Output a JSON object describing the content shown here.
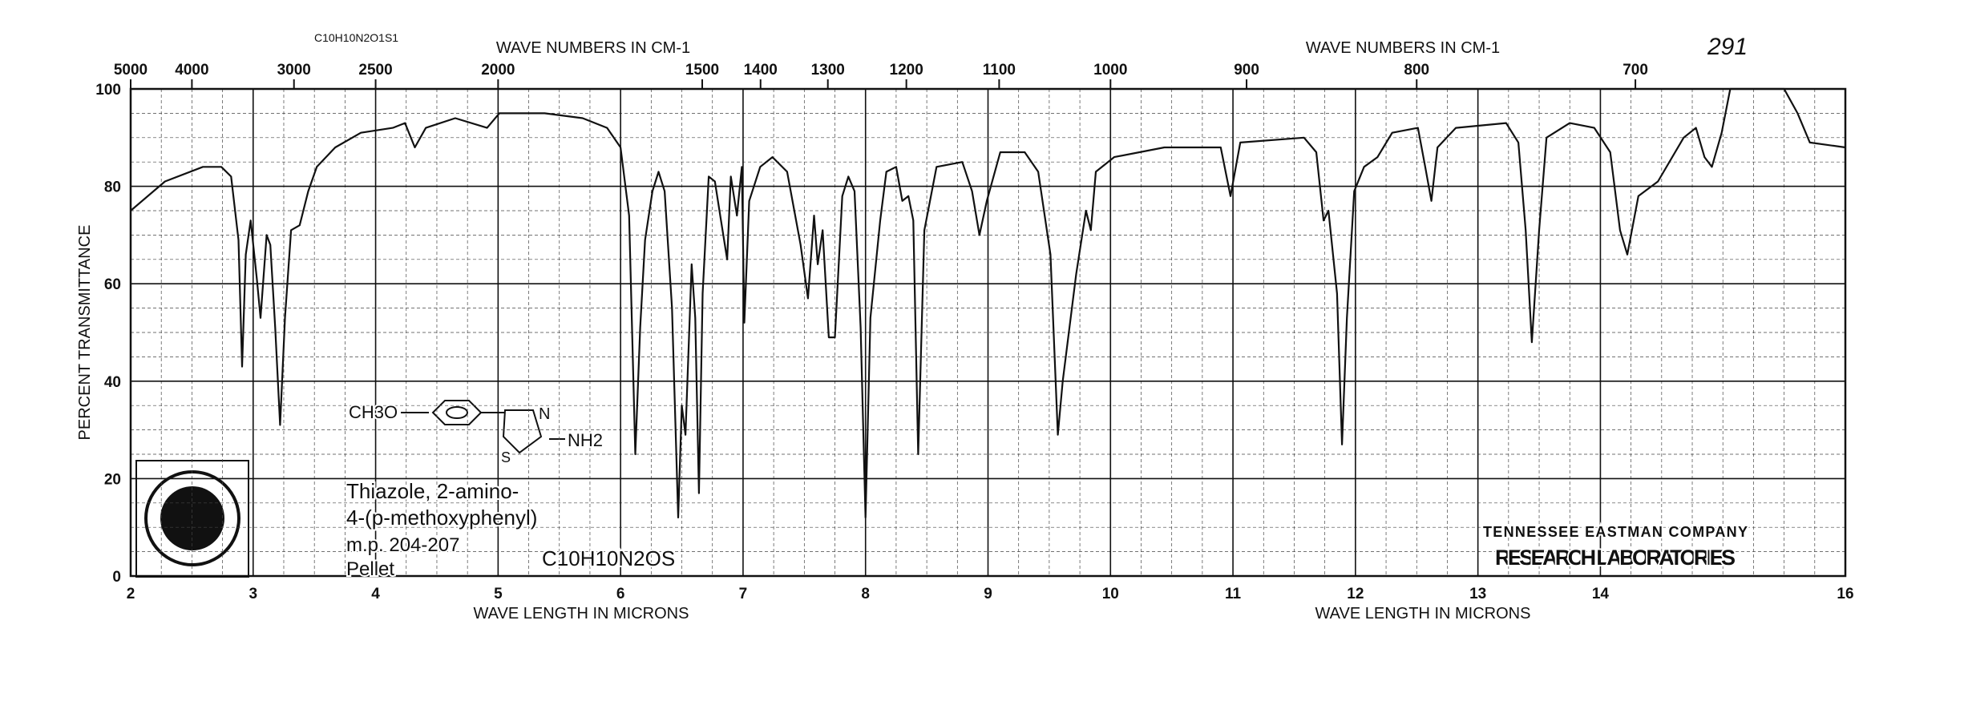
{
  "chart_data": {
    "type": "line",
    "title": "C10H10N2O1S1",
    "page_number": "291",
    "top_axis_label": "WAVE NUMBERS IN CM-1",
    "top_axis_label_right": "WAVE NUMBERS IN CM-1",
    "x_label": "WAVE LENGTH IN MICRONS",
    "x_label_right": "WAVE LENGTH IN MICRONS",
    "y_label": "PERCENT TRANSMITTANCE",
    "xlim": [
      2,
      16
    ],
    "xticks": [
      2,
      3,
      4,
      5,
      6,
      7,
      8,
      9,
      10,
      11,
      12,
      13,
      14,
      16
    ],
    "ylim": [
      0,
      100
    ],
    "yticks": [
      0,
      20,
      40,
      60,
      80,
      100
    ],
    "top_ticks": [
      5000,
      4000,
      3000,
      2500,
      2000,
      1500,
      1400,
      1300,
      1200,
      1100,
      1000,
      900,
      800,
      700
    ],
    "grid": true,
    "color": "#111111",
    "x": [
      2.0,
      2.28,
      2.59,
      2.74,
      2.82,
      2.88,
      2.91,
      2.94,
      2.98,
      3.03,
      3.06,
      3.11,
      3.14,
      3.18,
      3.22,
      3.26,
      3.31,
      3.38,
      3.45,
      3.52,
      3.67,
      3.88,
      4.14,
      4.24,
      4.32,
      4.41,
      4.65,
      4.91,
      5.01,
      5.38,
      5.69,
      5.89,
      6.0,
      6.07,
      6.12,
      6.16,
      6.2,
      6.26,
      6.31,
      6.36,
      6.42,
      6.47,
      6.5,
      6.53,
      6.58,
      6.61,
      6.64,
      6.67,
      6.72,
      6.77,
      6.82,
      6.87,
      6.9,
      6.95,
      6.99,
      7.01,
      7.05,
      7.14,
      7.24,
      7.36,
      7.47,
      7.53,
      7.58,
      7.61,
      7.65,
      7.7,
      7.75,
      7.81,
      7.86,
      7.91,
      7.96,
      8.0,
      8.04,
      8.12,
      8.17,
      8.25,
      8.3,
      8.35,
      8.39,
      8.43,
      8.48,
      8.58,
      8.79,
      8.87,
      8.93,
      8.99,
      9.1,
      9.3,
      9.41,
      9.51,
      9.57,
      9.61,
      9.72,
      9.8,
      9.84,
      9.88,
      10.03,
      10.44,
      10.9,
      10.98,
      11.06,
      11.58,
      11.68,
      11.74,
      11.78,
      11.85,
      11.89,
      11.93,
      11.99,
      12.07,
      12.18,
      12.3,
      12.51,
      12.57,
      12.62,
      12.67,
      12.82,
      13.23,
      13.33,
      13.39,
      13.44,
      13.5,
      13.56,
      13.75,
      13.95,
      14.08,
      14.16,
      14.22,
      14.31,
      14.47,
      14.68,
      14.78,
      14.85,
      14.91,
      14.99,
      15.06,
      15.5,
      15.61,
      15.71,
      16.0
    ],
    "values": [
      75,
      81,
      84,
      84,
      82,
      69,
      43,
      66,
      73,
      61,
      53,
      70,
      68,
      51,
      31,
      53,
      71,
      72,
      79,
      84,
      88,
      91,
      92,
      93,
      88,
      92,
      94,
      92,
      95,
      95,
      94,
      92,
      88,
      74,
      25,
      51,
      69,
      79,
      83,
      79,
      55,
      12,
      35,
      29,
      64,
      53,
      17,
      58,
      82,
      81,
      73,
      65,
      82,
      74,
      84,
      52,
      77,
      84,
      86,
      83,
      68,
      57,
      74,
      64,
      71,
      49,
      49,
      78,
      82,
      79,
      51,
      12,
      53,
      73,
      83,
      84,
      77,
      78,
      73,
      25,
      71,
      84,
      85,
      79,
      70,
      77,
      87,
      87,
      83,
      66,
      29,
      40,
      62,
      75,
      71,
      83,
      86,
      88,
      88,
      78,
      89,
      90,
      87,
      73,
      75,
      58,
      27,
      53,
      79,
      84,
      86,
      91,
      92,
      84,
      77,
      88,
      92,
      93,
      89,
      71,
      48,
      71,
      90,
      93,
      92,
      87,
      71,
      66,
      78,
      81,
      90,
      92,
      86,
      84,
      91,
      100,
      100,
      95,
      89,
      88
    ],
    "annotations": [
      "CH3O",
      "N",
      "S",
      "NH2",
      "Thiazole, 2-amino-",
      "4-(p-methoxyphenyl)",
      "m.p. 204-207",
      "Pellet",
      "C10H10N2OS",
      "TENNESSEE EASTMAN COMPANY",
      "RESEARCH LABORATORIES"
    ]
  }
}
